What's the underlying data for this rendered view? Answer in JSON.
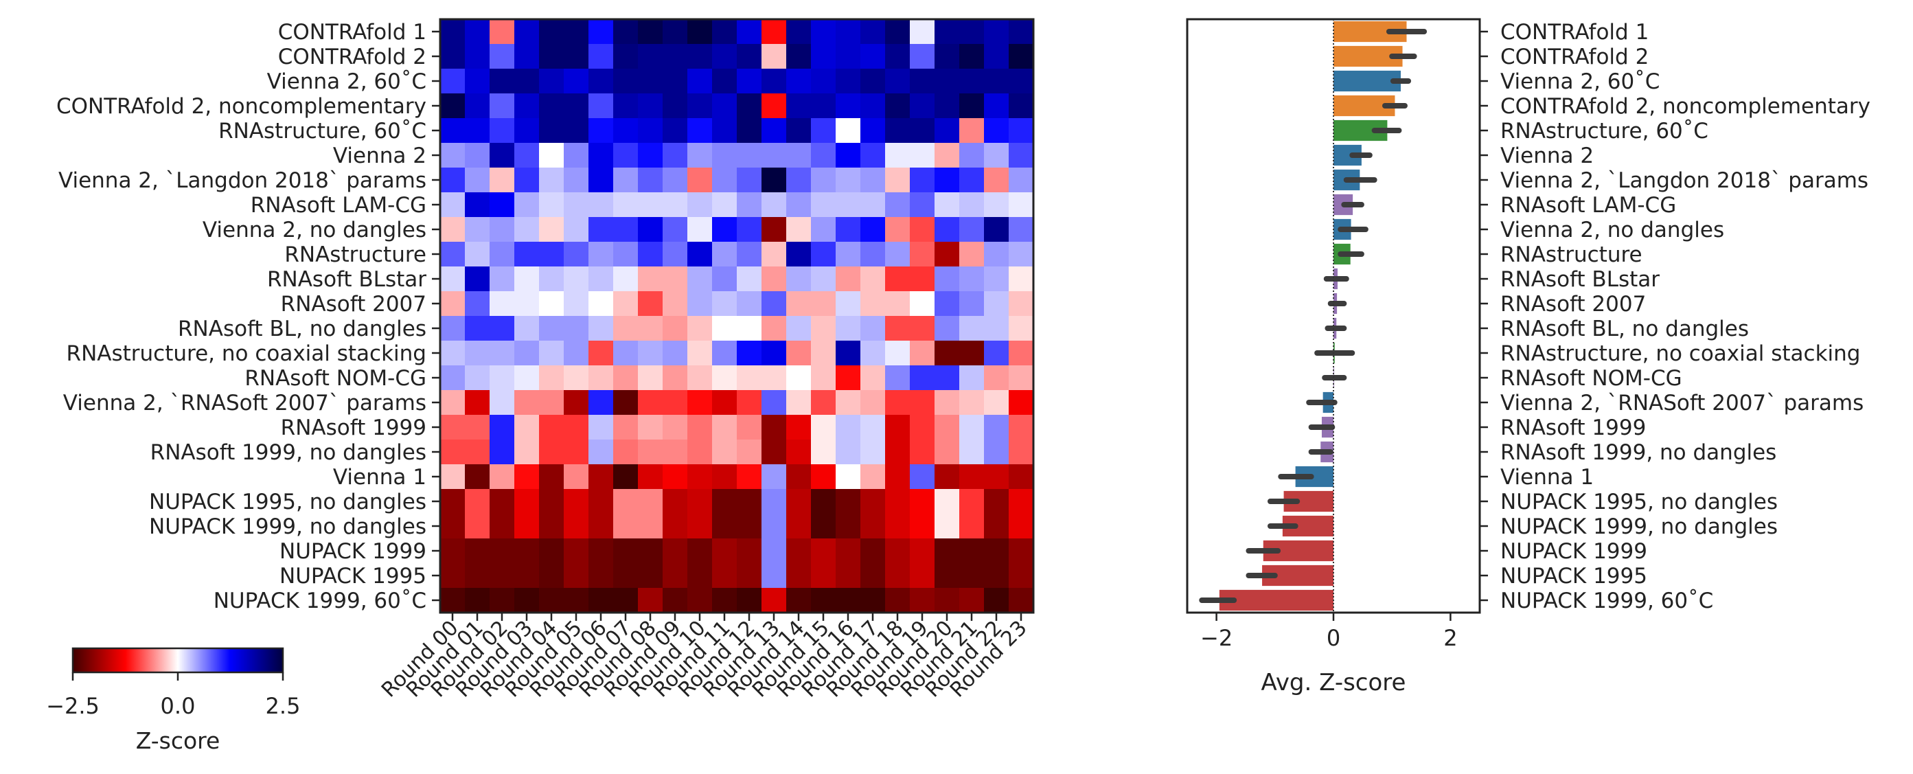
{
  "chart_data": [
    {
      "type": "heatmap",
      "rows": [
        "CONTRAfold 1",
        "CONTRAfold 2",
        "Vienna 2, 60˚C",
        "CONTRAfold 2, noncomplementary",
        "RNAstructure, 60˚C",
        "Vienna 2",
        "Vienna 2, `Langdon 2018` params",
        "RNAsoft LAM-CG",
        "Vienna 2, no dangles",
        "RNAstructure",
        "RNAsoft BLstar",
        "RNAsoft 2007",
        "RNAsoft BL, no dangles",
        "RNAstructure, no coaxial stacking",
        "RNAsoft NOM-CG",
        "Vienna 2, `RNASoft 2007` params",
        "RNAsoft 1999",
        "RNAsoft 1999, no dangles",
        "Vienna 1",
        "NUPACK 1995, no dangles",
        "NUPACK 1999, no dangles",
        "NUPACK 1999",
        "NUPACK 1995",
        "NUPACK 1999, 60˚C"
      ],
      "columns": [
        "Round 00",
        "Round 01",
        "Round 02",
        "Round 03",
        "Round 04",
        "Round 05",
        "Round 06",
        "Round 07",
        "Round 08",
        "Round 09",
        "Round 10",
        "Round 11",
        "Round 12",
        "Round 13",
        "Round 14",
        "Round 15",
        "Round 16",
        "Round 17",
        "Round 18",
        "Round 19",
        "Round 20",
        "Round 21",
        "Round 22",
        "Round 23"
      ],
      "values": [
        [
          2.0,
          1.6,
          -0.7,
          1.6,
          2.2,
          2.2,
          1.2,
          2.2,
          2.4,
          2.2,
          2.6,
          2.1,
          1.5,
          -1.2,
          2.0,
          1.5,
          1.6,
          1.8,
          2.2,
          0.1,
          2.0,
          2.0,
          1.8,
          2.0
        ],
        [
          2.0,
          1.6,
          0.8,
          1.6,
          2.2,
          2.2,
          1.0,
          2.1,
          2.0,
          2.0,
          2.0,
          1.8,
          2.0,
          -0.3,
          2.2,
          1.5,
          1.6,
          1.5,
          2.0,
          0.8,
          2.1,
          2.4,
          1.8,
          2.5
        ],
        [
          1.0,
          1.5,
          2.0,
          2.0,
          1.7,
          1.5,
          1.8,
          2.0,
          2.0,
          2.0,
          1.5,
          2.0,
          1.5,
          1.8,
          1.5,
          1.6,
          1.8,
          2.0,
          1.8,
          2.0,
          2.0,
          2.0,
          2.0,
          2.0
        ],
        [
          2.4,
          1.6,
          0.8,
          1.6,
          2.0,
          2.0,
          0.9,
          1.8,
          1.7,
          2.0,
          1.8,
          1.6,
          2.2,
          -1.2,
          1.8,
          1.8,
          1.5,
          1.6,
          2.2,
          1.8,
          2.0,
          2.4,
          1.5,
          2.1
        ],
        [
          1.4,
          1.4,
          1.0,
          1.5,
          2.0,
          2.0,
          1.2,
          1.4,
          1.5,
          1.8,
          1.2,
          1.6,
          2.2,
          1.4,
          2.0,
          1.0,
          0.0,
          1.4,
          2.0,
          2.0,
          1.6,
          -0.6,
          1.2,
          1.1
        ],
        [
          0.5,
          0.6,
          1.8,
          0.9,
          0.0,
          0.6,
          1.4,
          1.0,
          1.2,
          0.9,
          0.5,
          0.6,
          0.6,
          0.6,
          0.6,
          0.8,
          1.3,
          1.0,
          0.1,
          0.1,
          -0.4,
          0.6,
          0.4,
          0.9
        ],
        [
          1.0,
          0.5,
          -0.3,
          1.0,
          0.3,
          0.5,
          1.4,
          0.5,
          0.8,
          0.6,
          -0.7,
          0.6,
          0.8,
          2.6,
          0.8,
          0.5,
          0.4,
          0.5,
          -0.3,
          1.0,
          1.2,
          1.0,
          -0.6,
          0.5
        ],
        [
          0.3,
          1.5,
          1.3,
          0.4,
          0.2,
          0.3,
          0.3,
          0.2,
          0.2,
          0.2,
          0.3,
          0.2,
          0.5,
          0.3,
          0.5,
          0.3,
          0.3,
          0.3,
          0.6,
          0.8,
          0.2,
          0.3,
          0.2,
          0.1
        ],
        [
          -0.3,
          0.4,
          0.5,
          0.3,
          -0.2,
          0.3,
          1.0,
          1.0,
          1.4,
          0.8,
          0.1,
          1.2,
          1.0,
          -2.0,
          -0.2,
          0.5,
          1.0,
          1.2,
          -0.6,
          -0.9,
          1.0,
          0.8,
          2.0,
          0.7
        ],
        [
          0.8,
          0.3,
          0.6,
          1.0,
          1.0,
          0.8,
          0.5,
          0.6,
          1.0,
          0.7,
          1.5,
          0.5,
          0.7,
          -0.3,
          1.8,
          1.0,
          0.5,
          0.7,
          0.5,
          -0.8,
          -1.8,
          -0.5,
          0.5,
          0.4
        ],
        [
          0.2,
          1.6,
          0.4,
          0.1,
          0.3,
          0.2,
          0.3,
          0.1,
          -0.4,
          -0.4,
          0.4,
          0.6,
          0.2,
          -0.5,
          0.4,
          0.3,
          -0.5,
          -0.3,
          -1.0,
          -1.0,
          0.6,
          0.5,
          0.4,
          -0.1
        ],
        [
          -0.4,
          0.8,
          0.1,
          0.1,
          0.0,
          0.2,
          0.0,
          -0.3,
          -0.9,
          -0.4,
          0.4,
          0.3,
          0.4,
          0.8,
          -0.4,
          -0.4,
          0.2,
          -0.3,
          -0.3,
          0.0,
          0.8,
          0.6,
          0.3,
          -0.3
        ],
        [
          0.6,
          1.0,
          1.0,
          0.3,
          0.5,
          0.5,
          0.3,
          -0.4,
          -0.4,
          -0.5,
          -0.3,
          0.0,
          0.0,
          -0.5,
          0.3,
          -0.3,
          0.3,
          0.4,
          -0.9,
          -0.9,
          0.6,
          0.3,
          0.3,
          -0.2
        ],
        [
          0.3,
          0.4,
          0.4,
          0.5,
          0.3,
          0.5,
          -0.9,
          0.5,
          0.4,
          0.5,
          -0.2,
          0.6,
          1.2,
          1.4,
          -0.6,
          -0.3,
          1.8,
          0.3,
          0.1,
          -0.5,
          -2.2,
          -2.2,
          0.9,
          -0.7
        ],
        [
          0.5,
          0.3,
          0.2,
          0.1,
          -0.3,
          -0.2,
          -0.3,
          -0.5,
          -0.2,
          -0.5,
          -0.3,
          -0.1,
          -0.2,
          -0.2,
          0.0,
          -0.3,
          -1.2,
          -0.3,
          0.6,
          1.0,
          1.0,
          0.3,
          -0.5,
          -0.4
        ],
        [
          -0.4,
          -1.5,
          0.2,
          -0.6,
          -0.6,
          -1.8,
          1.1,
          -2.3,
          -1.0,
          -1.0,
          -1.2,
          -1.5,
          -1.0,
          0.8,
          -0.2,
          -0.9,
          -0.3,
          -0.4,
          -1.0,
          -1.0,
          -0.4,
          -0.3,
          -0.2,
          -1.3
        ],
        [
          -0.8,
          -0.8,
          1.1,
          -0.3,
          -1.0,
          -1.0,
          0.3,
          -0.6,
          -0.4,
          -0.5,
          -0.7,
          -0.4,
          -0.6,
          -2.0,
          -1.4,
          -0.1,
          0.3,
          0.2,
          -1.5,
          -1.0,
          -0.6,
          0.2,
          0.6,
          -0.8
        ],
        [
          -0.9,
          -0.9,
          1.1,
          -0.3,
          -1.0,
          -1.0,
          0.4,
          -0.7,
          -0.6,
          -0.6,
          -0.7,
          -0.4,
          -0.5,
          -2.0,
          -1.5,
          -0.1,
          0.3,
          0.2,
          -1.5,
          -1.0,
          -0.6,
          0.2,
          0.6,
          -0.8
        ],
        [
          -0.3,
          -2.2,
          -0.5,
          -1.2,
          -2.0,
          -0.6,
          -1.8,
          -2.6,
          -1.5,
          -1.3,
          -1.5,
          -1.6,
          -1.2,
          0.5,
          -1.8,
          -1.3,
          0.0,
          -0.4,
          -1.5,
          0.8,
          -1.8,
          -1.6,
          -1.6,
          -1.8
        ],
        [
          -2.0,
          -0.9,
          -2.0,
          -1.4,
          -2.0,
          -1.5,
          -1.8,
          -0.6,
          -0.6,
          -1.7,
          -1.6,
          -2.2,
          -2.2,
          0.6,
          -1.7,
          -2.4,
          -2.2,
          -1.8,
          -1.5,
          -1.3,
          -0.1,
          -1.0,
          -2.0,
          -1.4
        ],
        [
          -2.0,
          -0.9,
          -2.0,
          -1.4,
          -2.0,
          -1.5,
          -1.8,
          -0.6,
          -0.6,
          -1.7,
          -1.6,
          -2.2,
          -2.2,
          0.6,
          -1.7,
          -2.4,
          -2.2,
          -1.8,
          -1.5,
          -1.3,
          -0.1,
          -1.0,
          -2.0,
          -1.4
        ],
        [
          -2.1,
          -2.2,
          -2.2,
          -2.2,
          -2.3,
          -2.0,
          -2.2,
          -2.3,
          -2.3,
          -2.0,
          -2.2,
          -1.9,
          -2.0,
          0.6,
          -1.9,
          -1.7,
          -1.9,
          -2.2,
          -1.8,
          -1.6,
          -2.3,
          -2.3,
          -2.3,
          -2.0
        ],
        [
          -2.1,
          -2.2,
          -2.2,
          -2.2,
          -2.3,
          -2.0,
          -2.2,
          -2.3,
          -2.3,
          -2.0,
          -2.2,
          -1.9,
          -2.0,
          0.6,
          -1.9,
          -1.7,
          -1.9,
          -2.2,
          -1.8,
          -1.6,
          -2.3,
          -2.3,
          -2.3,
          -2.0
        ],
        [
          -2.4,
          -2.5,
          -2.4,
          -2.6,
          -2.4,
          -2.4,
          -2.5,
          -2.6,
          -1.9,
          -2.3,
          -2.2,
          -2.4,
          -2.5,
          -1.5,
          -2.4,
          -2.6,
          -2.6,
          -2.6,
          -2.2,
          -2.0,
          -2.1,
          -2.0,
          -2.5,
          -2.2
        ]
      ],
      "colorbar": {
        "label": "Z-score",
        "range": [
          -2.5,
          2.5
        ],
        "ticks": [
          "−2.5",
          "0.0",
          "2.5"
        ],
        "colors": {
          "low": "#c00000",
          "mid": "#ffffff",
          "high": "#000080"
        }
      }
    },
    {
      "type": "bar",
      "orientation": "horizontal",
      "categories": [
        "CONTRAfold 1",
        "CONTRAfold 2",
        "Vienna 2, 60˚C",
        "CONTRAfold 2, noncomplementary",
        "RNAstructure, 60˚C",
        "Vienna 2",
        "Vienna 2, `Langdon 2018` params",
        "RNAsoft LAM-CG",
        "Vienna 2, no dangles",
        "RNAstructure",
        "RNAsoft BLstar",
        "RNAsoft 2007",
        "RNAsoft BL, no dangles",
        "RNAstructure, no coaxial stacking",
        "RNAsoft NOM-CG",
        "Vienna 2, `RNASoft 2007` params",
        "RNAsoft 1999",
        "RNAsoft 1999, no dangles",
        "Vienna 1",
        "NUPACK 1995, no dangles",
        "NUPACK 1999, no dangles",
        "NUPACK 1999",
        "NUPACK 1995",
        "NUPACK 1999, 60˚C"
      ],
      "values": [
        1.25,
        1.18,
        1.15,
        1.05,
        0.92,
        0.48,
        0.45,
        0.33,
        0.3,
        0.29,
        0.07,
        0.06,
        0.05,
        0.02,
        0.01,
        -0.18,
        -0.2,
        -0.22,
        -0.65,
        -0.85,
        -0.87,
        -1.2,
        -1.22,
        -1.95
      ],
      "errors": [
        [
          0.95,
          1.55
        ],
        [
          1.0,
          1.38
        ],
        [
          1.02,
          1.28
        ],
        [
          0.88,
          1.22
        ],
        [
          0.7,
          1.12
        ],
        [
          0.32,
          0.62
        ],
        [
          0.22,
          0.7
        ],
        [
          0.18,
          0.48
        ],
        [
          0.12,
          0.55
        ],
        [
          0.12,
          0.48
        ],
        [
          -0.12,
          0.22
        ],
        [
          -0.05,
          0.18
        ],
        [
          -0.1,
          0.18
        ],
        [
          -0.28,
          0.32
        ],
        [
          -0.15,
          0.18
        ],
        [
          -0.42,
          0.02
        ],
        [
          -0.38,
          -0.02
        ],
        [
          -0.38,
          -0.05
        ],
        [
          -0.9,
          -0.38
        ],
        [
          -1.08,
          -0.62
        ],
        [
          -1.08,
          -0.65
        ],
        [
          -1.45,
          -0.95
        ],
        [
          -1.45,
          -1.0
        ],
        [
          -2.25,
          -1.7
        ]
      ],
      "families": [
        "CONTRAfold",
        "CONTRAfold",
        "Vienna",
        "CONTRAfold",
        "RNAstructure",
        "Vienna",
        "Vienna",
        "RNAsoft",
        "Vienna",
        "RNAstructure",
        "RNAsoft",
        "RNAsoft",
        "RNAsoft",
        "RNAstructure",
        "RNAsoft",
        "Vienna",
        "RNAsoft",
        "RNAsoft",
        "Vienna",
        "NUPACK",
        "NUPACK",
        "NUPACK",
        "NUPACK",
        "NUPACK"
      ],
      "colors": {
        "CONTRAfold": "#e5842f",
        "Vienna": "#3274a1",
        "RNAstructure": "#3a923a",
        "RNAsoft": "#9372b2",
        "NUPACK": "#c03d3e"
      },
      "xlabel": "Avg. Z-score",
      "xlim": [
        -2.5,
        2.5
      ],
      "xticks": [
        "−2",
        "0",
        "2"
      ],
      "xtick_values": [
        -2,
        0,
        2
      ]
    }
  ]
}
